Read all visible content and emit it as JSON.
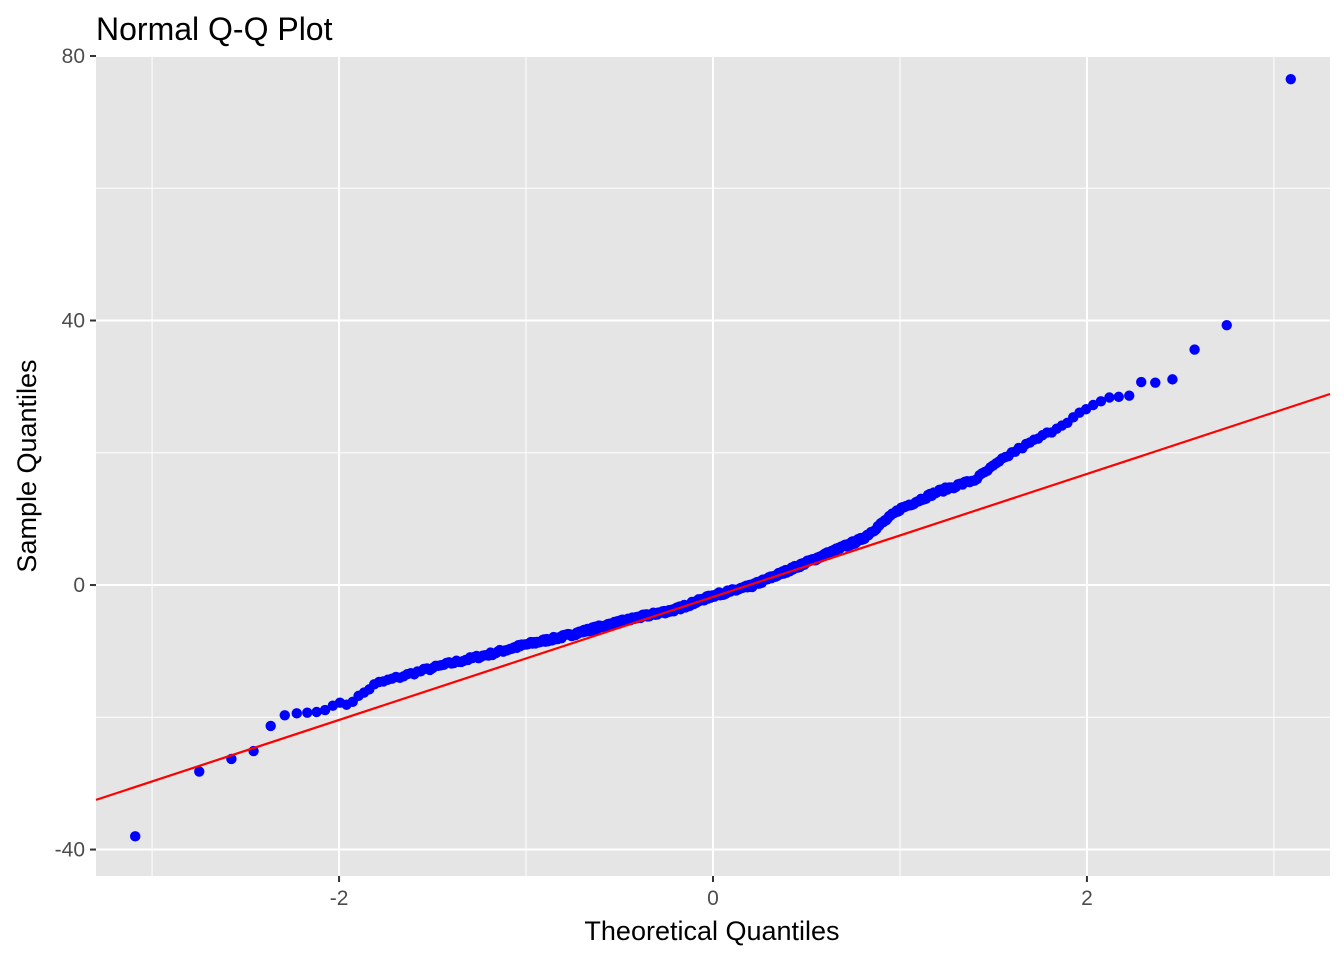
{
  "chart_data": {
    "type": "scatter",
    "title": "Normal Q-Q Plot",
    "xlabel": "Theoretical Quantiles",
    "ylabel": "Sample Quantiles",
    "xlim": [
      -3.3,
      3.3
    ],
    "ylim": [
      -44,
      80
    ],
    "x_ticks": [
      -2,
      0,
      2
    ],
    "x_tick_labels": [
      "-2",
      "0",
      "2"
    ],
    "y_ticks": [
      -40,
      0,
      40,
      80
    ],
    "y_tick_labels": [
      "-40",
      "0",
      "40",
      "80"
    ],
    "grid": true,
    "panel_background": "#e5e5e5",
    "grid_color": "#ffffff",
    "point_color": "#0000ff",
    "line_color": "#ff0000",
    "reference_line": {
      "intercept": -1.8,
      "slope": 9.3
    },
    "series": [
      {
        "x": [
          -3.0,
          -2.65,
          -2.5,
          -2.39,
          -2.3,
          -2.23,
          -2.16,
          -2.1,
          -2.04,
          -1.98
        ],
        "y": [
          -38,
          -28.2,
          -26.3,
          -25.1,
          -21.3,
          -19.7,
          -19.4,
          -19.3,
          -19.2,
          -18.9
        ]
      },
      {
        "x": [
          2.18,
          2.26,
          2.37,
          2.51,
          2.69,
          3.03
        ],
        "y": [
          30.7,
          30.6,
          31.1,
          35.6,
          39.3,
          76.5
        ]
      }
    ],
    "sorted_sample": {
      "n": 500,
      "head": [
        -38,
        -28.2,
        -26.3,
        -25.1,
        -21.3,
        -19.7,
        -19.4,
        -19.3,
        -19.2,
        -18.9
      ],
      "tail": [
        30.7,
        30.6,
        31.1,
        35.6,
        39.3,
        76.5
      ],
      "middle_knots_x": [
        -1.95,
        -1.8,
        -1.6,
        -1.4,
        -1.2,
        -1.0,
        -0.8,
        -0.6,
        -0.4,
        -0.2,
        0.0,
        0.2,
        0.4,
        0.6,
        0.8,
        1.0,
        1.2,
        1.4,
        1.6,
        1.8,
        2.0,
        2.15
      ],
      "middle_knots_y": [
        -18.0,
        -14.9,
        -13.3,
        -11.8,
        -10.5,
        -9.0,
        -7.8,
        -6.3,
        -4.9,
        -3.7,
        -1.6,
        -0.2,
        2.2,
        4.6,
        7.0,
        11.5,
        14.1,
        15.9,
        20.0,
        23.1,
        26.6,
        28.6
      ]
    }
  }
}
